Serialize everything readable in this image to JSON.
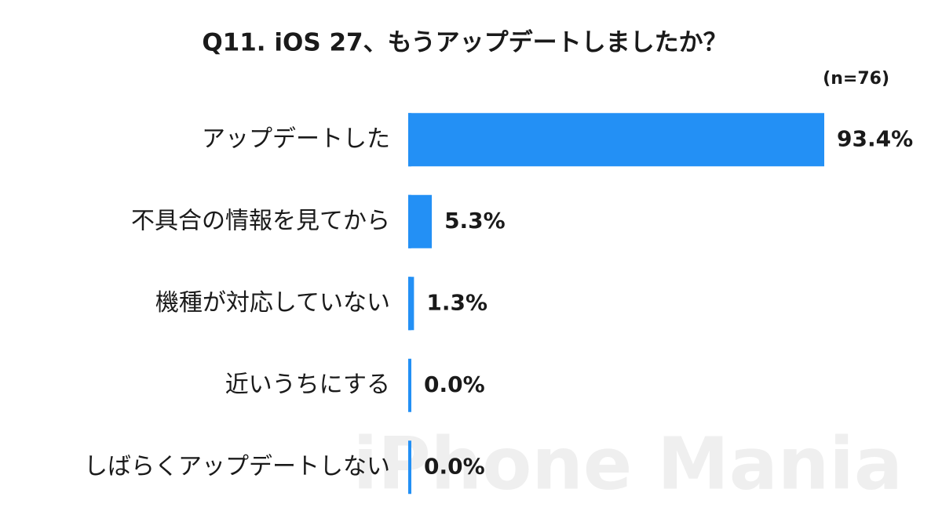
{
  "chart_data": {
    "type": "bar",
    "orientation": "horizontal",
    "title": "Q11. iOS 27、もうアップデートしましたか？",
    "subtitle": "(n=76)",
    "watermark": "iPhone Mania",
    "categories": [
      "アップデートした",
      "不具合の情報を見てから",
      "機種が対応していない",
      "近いうちにする",
      "しばらくアップデートしない"
    ],
    "values": [
      93.4,
      5.3,
      1.3,
      0.0,
      0.0
    ],
    "value_labels": [
      "93.4%",
      "5.3%",
      "1.3%",
      "0.0%",
      "0.0%"
    ],
    "color": "#2390f5"
  }
}
